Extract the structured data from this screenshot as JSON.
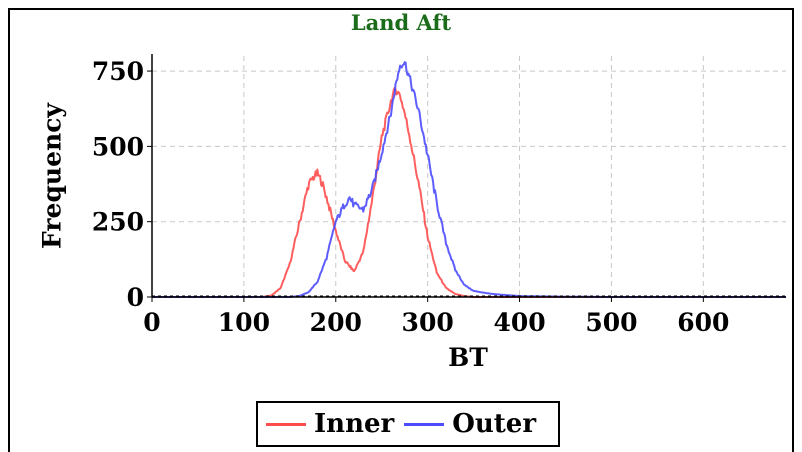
{
  "chart_data": {
    "type": "line",
    "title": "Land Aft",
    "xlabel": "BT",
    "ylabel": "Frequency",
    "xlim": [
      0,
      690
    ],
    "ylim": [
      0,
      800
    ],
    "xticks": [
      0,
      100,
      200,
      300,
      400,
      500,
      600
    ],
    "yticks": [
      0,
      250,
      500,
      750
    ],
    "grid": true,
    "legend_position": "bottom-center",
    "series": [
      {
        "name": "Inner",
        "color": "#ff4d4d",
        "x": [
          0,
          120,
          130,
          140,
          150,
          160,
          170,
          175,
          180,
          185,
          190,
          200,
          210,
          220,
          230,
          240,
          250,
          260,
          265,
          270,
          275,
          280,
          290,
          300,
          310,
          320,
          330,
          340,
          350,
          400,
          500,
          600,
          690
        ],
        "y": [
          0,
          0,
          5,
          30,
          110,
          240,
          370,
          395,
          410,
          380,
          330,
          220,
          120,
          85,
          150,
          330,
          530,
          650,
          690,
          670,
          610,
          540,
          380,
          200,
          80,
          30,
          10,
          3,
          0,
          0,
          0,
          0,
          0
        ]
      },
      {
        "name": "Outer",
        "color": "#4d4dff",
        "x": [
          0,
          150,
          160,
          170,
          180,
          190,
          200,
          210,
          215,
          220,
          230,
          240,
          250,
          260,
          265,
          270,
          275,
          280,
          290,
          300,
          310,
          320,
          330,
          340,
          350,
          370,
          400,
          450,
          500,
          600,
          690
        ],
        "y": [
          0,
          0,
          3,
          15,
          50,
          130,
          250,
          310,
          330,
          305,
          290,
          360,
          480,
          610,
          700,
          770,
          780,
          730,
          620,
          470,
          310,
          180,
          90,
          40,
          20,
          10,
          3,
          1,
          0,
          0,
          0
        ]
      }
    ]
  }
}
